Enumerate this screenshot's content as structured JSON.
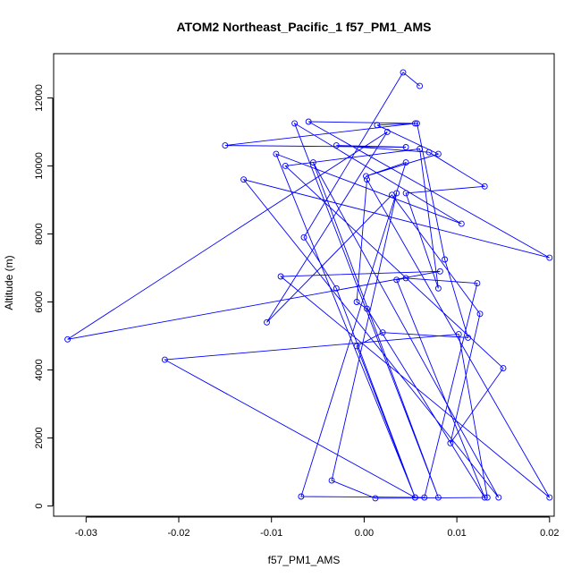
{
  "chart_data": {
    "type": "line",
    "title": "ATOM2 Northeast_Pacific_1 f57_PM1_AMS",
    "xlabel": "f57_PM1_AMS",
    "ylabel": "Altitude (m)",
    "xlim": [
      -0.0335,
      0.0205
    ],
    "ylim": [
      -300,
      13300
    ],
    "x_ticks": [
      -0.03,
      -0.02,
      -0.01,
      0.0,
      0.01,
      0.02
    ],
    "x_tick_labels": [
      "-0.03",
      "-0.02",
      "-0.01",
      "0.00",
      "0.01",
      "0.02"
    ],
    "y_ticks": [
      0,
      2000,
      4000,
      6000,
      8000,
      10000,
      12000
    ],
    "y_tick_labels": [
      "0",
      "2000",
      "4000",
      "6000",
      "8000",
      "10000",
      "12000"
    ],
    "grid": false,
    "series": [
      {
        "color": "#0000ff",
        "marker": "open-circle",
        "points": [
          [
            0.006,
            12350
          ],
          [
            0.0042,
            12750
          ],
          [
            -0.0065,
            7900
          ],
          [
            -0.003,
            6400
          ],
          [
            0.0055,
            250
          ],
          [
            -0.0095,
            10350
          ],
          [
            0.0105,
            8300
          ],
          [
            -0.0075,
            11250
          ],
          [
            0.008,
            250
          ],
          [
            -0.0055,
            10100
          ],
          [
            0.0145,
            250
          ],
          [
            -0.013,
            9600
          ],
          [
            0.02,
            7300
          ],
          [
            -0.006,
            11300
          ],
          [
            0.0055,
            11250
          ],
          [
            -0.015,
            10600
          ],
          [
            0.0045,
            10550
          ],
          [
            -0.003,
            10600
          ],
          [
            0.007,
            10400
          ],
          [
            0.013,
            9400
          ],
          [
            0.0045,
            9200
          ],
          [
            0.008,
            6400
          ],
          [
            0.006,
            10500
          ],
          [
            -0.0085,
            10000
          ],
          [
            0.015,
            4050
          ],
          [
            0.0093,
            1850
          ],
          [
            0.0125,
            5650
          ],
          [
            0.003,
            9150
          ],
          [
            -0.0105,
            5400
          ],
          [
            0.0025,
            11000
          ],
          [
            -0.032,
            4900
          ],
          [
            0.0082,
            6900
          ],
          [
            -0.009,
            6750
          ],
          [
            0.02,
            250
          ],
          [
            0.0003,
            9600
          ],
          [
            -0.0008,
            6000
          ],
          [
            0.0003,
            5800
          ],
          [
            0.013,
            250
          ],
          [
            0.0035,
            6650
          ],
          [
            0.0045,
            6700
          ],
          [
            0.0122,
            6550
          ],
          [
            0.0065,
            250
          ],
          [
            -0.0068,
            280
          ],
          [
            0.0045,
            10100
          ],
          [
            0.0002,
            9700
          ],
          [
            0.008,
            10350
          ],
          [
            0.0014,
            11200
          ],
          [
            0.0057,
            11250
          ],
          [
            0.0087,
            7250
          ],
          [
            0.0112,
            4950
          ],
          [
            0.002,
            5100
          ],
          [
            -0.0008,
            4700
          ],
          [
            0.0055,
            250
          ],
          [
            -0.0215,
            4300
          ],
          [
            0.0102,
            5050
          ],
          [
            0.0133,
            250
          ],
          [
            0.0012,
            230
          ],
          [
            -0.0035,
            750
          ],
          [
            0.0035,
            9200
          ]
        ]
      }
    ]
  }
}
